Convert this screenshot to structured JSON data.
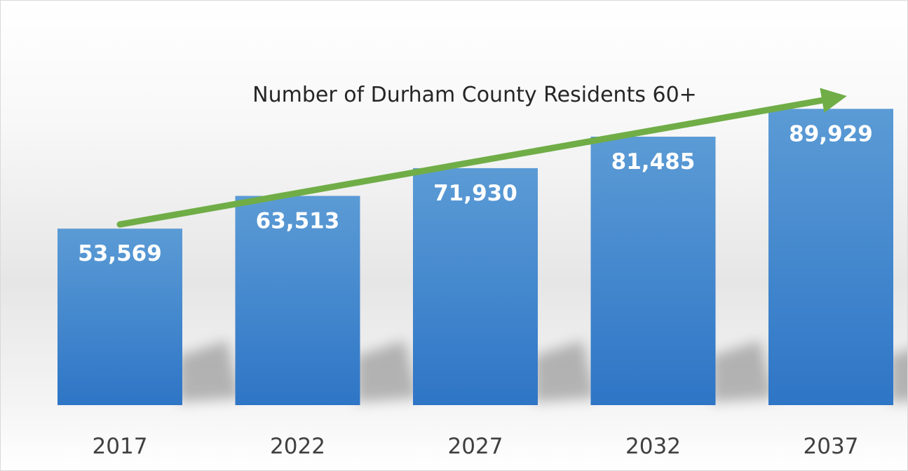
{
  "chart_data": {
    "type": "bar",
    "title": "Number of Durham County Residents 60+",
    "categories": [
      "2017",
      "2022",
      "2027",
      "2032",
      "2037"
    ],
    "values": [
      53569,
      63513,
      71930,
      81485,
      89929
    ],
    "value_labels": [
      "53,569",
      "63,513",
      "71,930",
      "81,485",
      "89,929"
    ],
    "ylim": [
      0,
      100000
    ],
    "grid": false,
    "legend": "none",
    "trend_arrow": true,
    "colors": {
      "bar_top": "#5b9bd5",
      "bar_bottom": "#2e75c6",
      "arrow": "#70ad47"
    }
  }
}
